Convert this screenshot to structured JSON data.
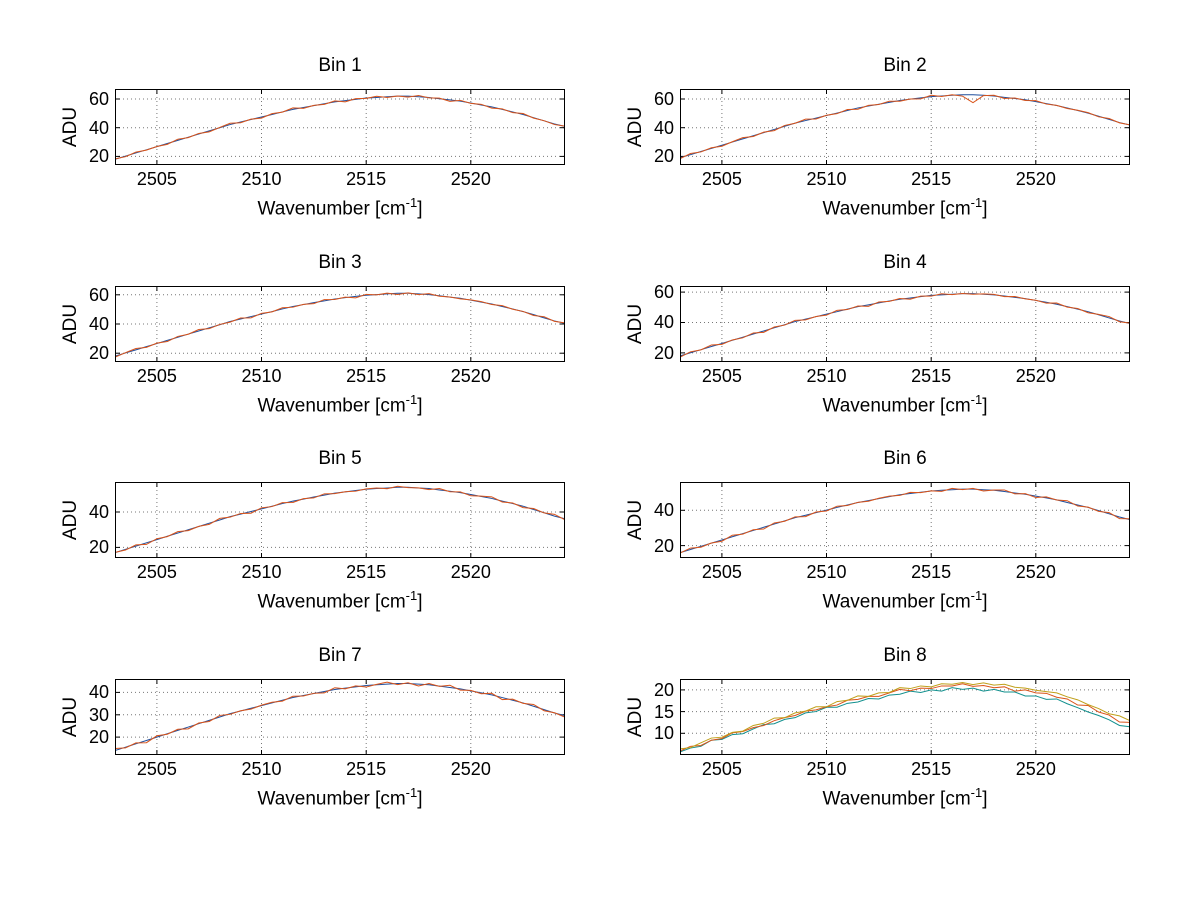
{
  "figure": {
    "background": "#ffffff",
    "grid_style": "dotted",
    "layout": "4x2 subplots"
  },
  "axis_labels": {
    "y": "ADU",
    "x_main": "Wavenumber [cm",
    "x_sup": "-1",
    "x_close": "]"
  },
  "chart_data": [
    {
      "type": "line",
      "title": "Bin 1",
      "xlabel": "Wavenumber [cm⁻¹]",
      "ylabel": "ADU",
      "xlim": [
        2503,
        2524.5
      ],
      "ylim": [
        14,
        67
      ],
      "xticks": [
        2505,
        2510,
        2515,
        2520
      ],
      "yticks": [
        20,
        40,
        60
      ],
      "x_start": 2503,
      "x_step": 0.5,
      "grid": true,
      "legend": "none",
      "series": [
        {
          "name": "series-1",
          "color": "#1f4e9c",
          "values": [
            18.0,
            20.2,
            22.4,
            24.6,
            26.8,
            29.0,
            31.2,
            33.4,
            35.6,
            37.8,
            40.0,
            42.2,
            44.0,
            45.7,
            47.5,
            49.2,
            51.0,
            52.8,
            54.1,
            55.4,
            56.7,
            58.0,
            58.9,
            59.8,
            60.7,
            61.1,
            61.6,
            62.0,
            62.0,
            61.6,
            61.1,
            60.2,
            59.4,
            58.5,
            57.2,
            55.8,
            54.5,
            52.8,
            51.0,
            49.2,
            47.0,
            44.8,
            42.6,
            40.9
          ]
        },
        {
          "name": "series-2",
          "color": "#d95319",
          "values": [
            18.3,
            19.8,
            23.0,
            24.4,
            26.9,
            28.4,
            32.0,
            33.1,
            36.0,
            37.1,
            40.2,
            43.1,
            43.5,
            46.0,
            46.7,
            49.8,
            50.9,
            53.8,
            53.5,
            55.6,
            56.3,
            58.7,
            58.0,
            60.3,
            60.5,
            61.9,
            61.1,
            62.1,
            61.3,
            62.5,
            60.8,
            60.6,
            58.4,
            59.1,
            57.0,
            56.3,
            53.7,
            53.1,
            50.5,
            49.9,
            46.7,
            44.9,
            42.2,
            41.1
          ]
        }
      ]
    },
    {
      "type": "line",
      "title": "Bin 2",
      "xlabel": "Wavenumber [cm⁻¹]",
      "ylabel": "ADU",
      "xlim": [
        2503,
        2524.5
      ],
      "ylim": [
        14,
        67
      ],
      "xticks": [
        2505,
        2510,
        2515,
        2520
      ],
      "yticks": [
        20,
        40,
        60
      ],
      "x_start": 2503,
      "x_step": 0.5,
      "grid": true,
      "legend": "none",
      "series": [
        {
          "name": "series-1",
          "color": "#1f4e9c",
          "values": [
            19.0,
            21.2,
            23.4,
            25.6,
            27.8,
            30.0,
            32.2,
            34.4,
            36.6,
            38.8,
            41.0,
            43.2,
            45.0,
            46.7,
            48.5,
            50.2,
            52.0,
            53.8,
            55.1,
            56.4,
            57.7,
            59.0,
            59.9,
            60.8,
            61.7,
            62.1,
            62.6,
            63.0,
            63.0,
            62.6,
            62.1,
            61.2,
            60.4,
            59.5,
            58.2,
            56.8,
            55.5,
            53.8,
            52.0,
            50.2,
            48.0,
            45.8,
            43.6,
            41.9
          ]
        },
        {
          "name": "series-2",
          "color": "#d95319",
          "values": [
            18.4,
            22.0,
            23.1,
            26.0,
            27.1,
            30.2,
            33.1,
            33.9,
            36.9,
            38.0,
            41.6,
            43.1,
            46.0,
            46.1,
            48.7,
            49.8,
            52.7,
            52.9,
            55.6,
            56.2,
            58.5,
            58.5,
            60.0,
            60.1,
            62.6,
            61.8,
            63.0,
            62.0,
            57.5,
            62.4,
            62.6,
            60.4,
            60.7,
            59.0,
            58.9,
            56.5,
            55.6,
            53.4,
            52.2,
            50.5,
            47.6,
            46.4,
            43.4,
            42.0
          ]
        }
      ]
    },
    {
      "type": "line",
      "title": "Bin 3",
      "xlabel": "Wavenumber [cm⁻¹]",
      "ylabel": "ADU",
      "xlim": [
        2503,
        2524.5
      ],
      "ylim": [
        14,
        66
      ],
      "xticks": [
        2505,
        2510,
        2515,
        2520
      ],
      "yticks": [
        20,
        40,
        60
      ],
      "x_start": 2503,
      "x_step": 0.5,
      "grid": true,
      "legend": "none",
      "series": [
        {
          "name": "series-1",
          "color": "#1f4e9c",
          "values": [
            18.0,
            20.2,
            22.3,
            24.5,
            26.6,
            28.8,
            30.9,
            33.1,
            35.2,
            37.4,
            39.5,
            41.7,
            43.4,
            45.1,
            46.8,
            48.5,
            50.3,
            52.0,
            53.3,
            54.6,
            55.8,
            57.1,
            58.0,
            58.9,
            59.7,
            60.1,
            60.6,
            61.0,
            61.0,
            60.6,
            60.1,
            59.3,
            58.4,
            57.6,
            56.3,
            55.0,
            53.7,
            52.0,
            50.3,
            48.5,
            46.4,
            44.2,
            42.1,
            40.4
          ]
        },
        {
          "name": "series-2",
          "color": "#d95319",
          "values": [
            17.3,
            20.4,
            23.2,
            24.0,
            26.9,
            28.0,
            31.5,
            33.0,
            36.2,
            36.8,
            39.7,
            41.3,
            44.1,
            44.2,
            47.3,
            48.3,
            51.1,
            51.5,
            53.4,
            53.9,
            56.7,
            56.8,
            58.4,
            57.9,
            60.3,
            59.9,
            61.1,
            60.2,
            61.3,
            60.1,
            60.8,
            59.0,
            58.5,
            57.2,
            56.5,
            55.3,
            53.3,
            52.6,
            50.1,
            48.6,
            45.8,
            45.0,
            41.8,
            40.8
          ]
        }
      ]
    },
    {
      "type": "line",
      "title": "Bin 4",
      "xlabel": "Wavenumber [cm⁻¹]",
      "ylabel": "ADU",
      "xlim": [
        2503,
        2524.5
      ],
      "ylim": [
        14,
        64
      ],
      "xticks": [
        2505,
        2510,
        2515,
        2520
      ],
      "yticks": [
        20,
        40,
        60
      ],
      "x_start": 2503,
      "x_step": 0.5,
      "grid": true,
      "legend": "none",
      "series": [
        {
          "name": "series-1",
          "color": "#1f4e9c",
          "values": [
            18.0,
            20.1,
            22.1,
            24.2,
            26.2,
            28.3,
            30.3,
            32.4,
            34.4,
            36.5,
            38.5,
            40.6,
            42.2,
            43.8,
            45.5,
            47.1,
            48.8,
            50.4,
            51.6,
            52.9,
            54.1,
            55.3,
            56.1,
            57.0,
            57.8,
            58.2,
            58.6,
            59.0,
            59.0,
            58.6,
            58.2,
            57.4,
            56.5,
            55.7,
            54.5,
            53.3,
            52.0,
            50.4,
            48.8,
            47.1,
            45.1,
            43.0,
            41.0,
            39.3
          ]
        },
        {
          "name": "series-2",
          "color": "#d95319",
          "values": [
            17.2,
            20.7,
            22.0,
            25.2,
            25.6,
            28.5,
            29.9,
            33.1,
            33.5,
            37.0,
            38.3,
            41.4,
            41.7,
            43.9,
            44.8,
            48.0,
            48.5,
            50.8,
            50.6,
            53.5,
            53.9,
            55.8,
            55.3,
            57.3,
            57.3,
            58.9,
            58.3,
            59.1,
            58.6,
            58.8,
            58.5,
            57.0,
            57.1,
            55.5,
            54.6,
            52.7,
            52.8,
            50.1,
            49.2,
            46.4,
            45.3,
            43.9,
            40.5,
            39.6
          ]
        }
      ]
    },
    {
      "type": "line",
      "title": "Bin 5",
      "xlabel": "Wavenumber [cm⁻¹]",
      "ylabel": "ADU",
      "xlim": [
        2503,
        2524.5
      ],
      "ylim": [
        14,
        57
      ],
      "xticks": [
        2505,
        2510,
        2515,
        2520
      ],
      "yticks": [
        20,
        40
      ],
      "x_start": 2503,
      "x_step": 0.5,
      "grid": true,
      "legend": "none",
      "series": [
        {
          "name": "series-1",
          "color": "#1f4e9c",
          "values": [
            17.0,
            18.9,
            20.7,
            22.6,
            24.4,
            26.3,
            28.1,
            30.0,
            31.8,
            33.7,
            35.5,
            37.4,
            38.8,
            40.3,
            41.8,
            43.3,
            44.8,
            46.2,
            47.3,
            48.5,
            49.6,
            50.7,
            51.4,
            52.2,
            52.9,
            53.3,
            53.6,
            54.0,
            54.0,
            53.6,
            53.3,
            52.5,
            51.8,
            51.0,
            49.9,
            48.8,
            47.7,
            46.2,
            44.8,
            43.3,
            41.4,
            39.6,
            37.7,
            36.2
          ]
        },
        {
          "name": "series-2",
          "color": "#d95319",
          "values": [
            17.2,
            18.5,
            21.4,
            21.7,
            24.9,
            26.1,
            28.9,
            29.5,
            31.9,
            33.0,
            36.4,
            37.1,
            39.2,
            39.3,
            42.4,
            43.1,
            45.3,
            45.4,
            47.6,
            48.0,
            50.3,
            50.4,
            51.5,
            51.8,
            53.1,
            53.6,
            53.2,
            54.6,
            53.8,
            53.7,
            52.7,
            53.3,
            51.5,
            51.4,
            49.2,
            49.0,
            48.6,
            45.7,
            45.1,
            42.5,
            42.0,
            39.5,
            38.7,
            35.6
          ]
        }
      ]
    },
    {
      "type": "line",
      "title": "Bin 6",
      "xlabel": "Wavenumber [cm⁻¹]",
      "ylabel": "ADU",
      "xlim": [
        2503,
        2524.5
      ],
      "ylim": [
        13,
        56
      ],
      "xticks": [
        2505,
        2510,
        2515,
        2520
      ],
      "yticks": [
        20,
        40
      ],
      "x_start": 2503,
      "x_step": 0.5,
      "grid": true,
      "legend": "none",
      "series": [
        {
          "name": "series-1",
          "color": "#1f4e9c",
          "values": [
            16.0,
            17.8,
            19.6,
            21.4,
            23.2,
            25.0,
            26.8,
            28.6,
            30.4,
            32.2,
            34.0,
            35.8,
            37.2,
            38.7,
            40.1,
            41.6,
            43.0,
            44.4,
            45.5,
            46.6,
            47.7,
            48.8,
            49.5,
            50.2,
            50.9,
            51.3,
            51.6,
            52.0,
            52.0,
            51.6,
            51.3,
            50.6,
            49.8,
            49.1,
            48.0,
            47.0,
            45.9,
            44.4,
            43.0,
            41.6,
            39.8,
            38.0,
            36.2,
            34.7
          ]
        },
        {
          "name": "series-2",
          "color": "#d95319",
          "values": [
            15.8,
            18.6,
            19.1,
            21.5,
            22.5,
            25.9,
            26.5,
            29.0,
            29.4,
            32.8,
            33.8,
            36.3,
            36.4,
            39.0,
            39.6,
            42.3,
            42.7,
            44.5,
            45.1,
            46.8,
            48.0,
            48.4,
            50.1,
            50.0,
            51.0,
            50.7,
            52.4,
            51.7,
            52.4,
            50.9,
            51.5,
            51.5,
            49.3,
            49.4,
            47.2,
            47.6,
            45.8,
            45.4,
            42.4,
            41.8,
            39.4,
            38.7,
            35.3,
            35.2
          ]
        }
      ]
    },
    {
      "type": "line",
      "title": "Bin 7",
      "xlabel": "Wavenumber [cm⁻¹]",
      "ylabel": "ADU",
      "xlim": [
        2503,
        2524.5
      ],
      "ylim": [
        12,
        46
      ],
      "xticks": [
        2505,
        2510,
        2515,
        2520
      ],
      "yticks": [
        20,
        30,
        40
      ],
      "x_start": 2503,
      "x_step": 0.5,
      "grid": true,
      "legend": "none",
      "series": [
        {
          "name": "series-1",
          "color": "#1f4e9c",
          "values": [
            14.0,
            15.5,
            17.0,
            18.5,
            20.0,
            21.5,
            23.0,
            24.5,
            26.0,
            27.5,
            29.0,
            30.5,
            31.7,
            32.9,
            34.1,
            35.3,
            36.5,
            37.7,
            38.6,
            39.5,
            40.4,
            41.3,
            41.9,
            42.5,
            43.1,
            43.4,
            43.7,
            44.0,
            44.0,
            43.7,
            43.4,
            42.8,
            42.2,
            41.6,
            40.7,
            39.8,
            38.9,
            37.7,
            36.5,
            35.3,
            33.8,
            32.3,
            30.8,
            29.6
          ]
        },
        {
          "name": "series-2",
          "color": "#d95319",
          "values": [
            14.9,
            15.2,
            17.4,
            17.5,
            20.6,
            21.3,
            23.5,
            23.7,
            26.3,
            27.0,
            29.7,
            30.2,
            31.8,
            32.5,
            34.3,
            35.6,
            36.1,
            38.3,
            38.4,
            39.6,
            39.8,
            42.1,
            41.6,
            42.9,
            42.4,
            43.6,
            44.6,
            43.5,
            44.3,
            42.9,
            44.0,
            42.7,
            43.2,
            41.0,
            40.9,
            39.4,
            39.6,
            36.8,
            37.0,
            35.1,
            34.6,
            31.8,
            30.9,
            28.9
          ]
        }
      ]
    },
    {
      "type": "line",
      "title": "Bin 8",
      "xlabel": "Wavenumber [cm⁻¹]",
      "ylabel": "ADU",
      "xlim": [
        2503,
        2524.5
      ],
      "ylim": [
        5,
        22.5
      ],
      "xticks": [
        2505,
        2510,
        2515,
        2520
      ],
      "yticks": [
        10,
        15,
        20
      ],
      "x_start": 2503,
      "x_step": 0.5,
      "grid": true,
      "legend": "none",
      "series": [
        {
          "name": "series-1",
          "color": "#12908e",
          "values": [
            5.7,
            6.6,
            7.0,
            8.4,
            8.6,
            9.7,
            9.9,
            11.0,
            12.0,
            12.2,
            13.2,
            13.6,
            14.7,
            15.0,
            16.0,
            16.0,
            16.9,
            17.2,
            18.0,
            17.9,
            18.8,
            19.0,
            19.7,
            19.4,
            20.0,
            19.7,
            20.5,
            20.1,
            20.4,
            19.7,
            20.1,
            19.5,
            19.5,
            18.6,
            18.6,
            17.8,
            17.9,
            16.8,
            15.9,
            14.9,
            14.1,
            13.1,
            11.8,
            11.5
          ]
        },
        {
          "name": "series-2",
          "color": "#d95319",
          "values": [
            5.9,
            7.0,
            7.2,
            8.4,
            8.8,
            10.1,
            10.4,
            11.3,
            11.8,
            12.9,
            13.6,
            14.1,
            15.1,
            15.4,
            16.1,
            16.5,
            17.6,
            17.8,
            18.5,
            18.5,
            19.3,
            20.1,
            19.8,
            20.4,
            20.3,
            20.9,
            20.9,
            21.4,
            20.8,
            21.0,
            20.5,
            20.7,
            19.7,
            20.0,
            19.3,
            19.2,
            18.3,
            17.9,
            16.5,
            16.4,
            14.9,
            14.2,
            12.6,
            12.5
          ]
        },
        {
          "name": "series-3",
          "color": "#c0a01a",
          "values": [
            6.4,
            6.7,
            7.8,
            8.9,
            9.1,
            10.2,
            10.5,
            11.8,
            12.3,
            13.5,
            13.6,
            14.7,
            15.1,
            16.1,
            16.1,
            17.3,
            17.6,
            18.6,
            18.5,
            19.3,
            19.4,
            20.5,
            20.3,
            20.9,
            20.7,
            21.4,
            21.3,
            21.7,
            21.2,
            21.6,
            21.1,
            21.3,
            20.6,
            20.4,
            19.9,
            19.6,
            19.3,
            18.4,
            17.7,
            16.6,
            15.7,
            14.5,
            14.0,
            12.9
          ]
        }
      ]
    }
  ]
}
